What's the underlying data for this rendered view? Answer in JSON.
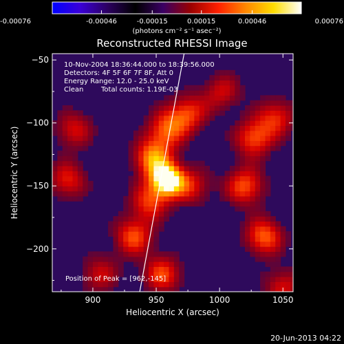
{
  "colorbar": {
    "ticks": [
      "-0.00076",
      "-0.00046",
      "-0.00015",
      "0.00015",
      "0.00046",
      "0.00076"
    ],
    "tick_values": [
      -0.00076,
      -0.00046,
      -0.00015,
      0.00015,
      0.00046,
      0.00076
    ],
    "units": "(photons cm⁻² s⁻¹ asec⁻²)",
    "colors": [
      "#0000ff",
      "#3a00d8",
      "#2c0060",
      "#000000",
      "#3a0064",
      "#9a0000",
      "#ff2000",
      "#ff8800",
      "#ffdd00",
      "#ffffff"
    ]
  },
  "chart_data": {
    "type": "heatmap",
    "title": "Reconstructed RHESSI Image",
    "xlabel": "Heliocentric X (arcsec)",
    "ylabel": "Heliocentric Y (arcsec)",
    "xlim": [
      868,
      1058
    ],
    "ylim": [
      -234,
      -45
    ],
    "xticks": [
      900,
      950,
      1000,
      1050
    ],
    "yticks": [
      -50,
      -100,
      -150,
      -200
    ],
    "xtick_labels": [
      "900",
      "950",
      "1000",
      "1050"
    ],
    "ytick_labels": [
      "−50",
      "−100",
      "−150",
      "−200"
    ],
    "annotations": [
      "10-Nov-2004 18:36:44.000 to 18:39:56.000",
      "Detectors: 4F 5F 6F 7F 8F, Att 0",
      "Energy Range: 12.0 - 25.0 keV",
      "Clean",
      "Total counts: 1.19E-03"
    ],
    "peak": {
      "x": 962,
      "y": -145,
      "label": "Position of Peak = [962,-145]"
    },
    "limb_line": [
      [
        937,
        -234
      ],
      [
        972,
        -45
      ]
    ],
    "sources": [
      {
        "x": 959,
        "y": -145,
        "level": 1.0
      },
      {
        "x": 947,
        "y": -128,
        "level": 0.72
      },
      {
        "x": 958,
        "y": -105,
        "level": 0.58
      },
      {
        "x": 945,
        "y": -162,
        "level": 0.55
      },
      {
        "x": 978,
        "y": -150,
        "level": 0.45
      },
      {
        "x": 932,
        "y": -190,
        "level": 0.6
      },
      {
        "x": 955,
        "y": -220,
        "level": 0.58
      },
      {
        "x": 975,
        "y": -92,
        "level": 0.55
      },
      {
        "x": 1020,
        "y": -150,
        "level": 0.62
      },
      {
        "x": 1027,
        "y": -112,
        "level": 0.6
      },
      {
        "x": 1045,
        "y": -95,
        "level": 0.5
      },
      {
        "x": 1035,
        "y": -190,
        "level": 0.65
      },
      {
        "x": 1050,
        "y": -230,
        "level": 0.45
      },
      {
        "x": 880,
        "y": -145,
        "level": 0.5
      },
      {
        "x": 885,
        "y": -105,
        "level": 0.45
      },
      {
        "x": 905,
        "y": -220,
        "level": 0.42
      },
      {
        "x": 1002,
        "y": -75,
        "level": 0.42
      }
    ]
  },
  "footer": {
    "timestamp": "20-Jun-2013 04:22"
  }
}
